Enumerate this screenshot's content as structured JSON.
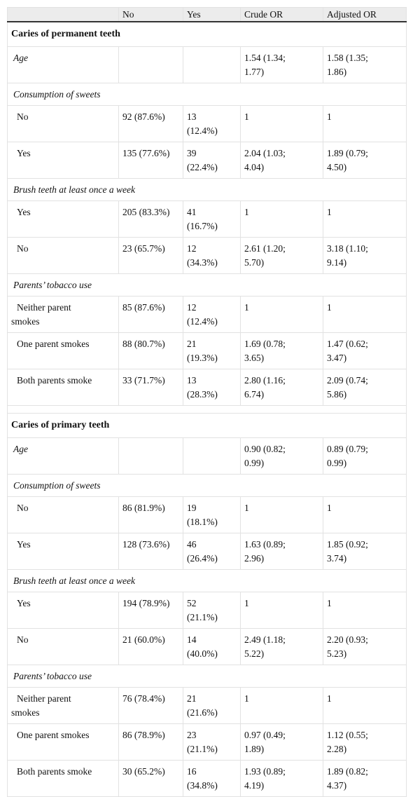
{
  "table": {
    "header": [
      "No",
      "Yes",
      "Crude OR",
      "Adjusted OR"
    ],
    "sections": [
      {
        "title": "Caries of permanent teeth",
        "groups": [
          {
            "label": "Age",
            "crude_or": "1.54 (1.34; 1.77)",
            "adjusted_or": "1.58 (1.35; 1.86)"
          },
          {
            "label": "Consumption of sweets",
            "levels": [
              {
                "label": "No",
                "no": "92 (87.6%)",
                "yes": "13 (12.4%)",
                "crude_or": "1",
                "adjusted_or": "1"
              },
              {
                "label": "Yes",
                "no": "135 (77.6%)",
                "yes": "39 (22.4%)",
                "crude_or": "2.04 (1.03; 4.04)",
                "adjusted_or": "1.89 (0.79; 4.50)"
              }
            ]
          },
          {
            "label": "Brush teeth at least once a week",
            "levels": [
              {
                "label": "Yes",
                "no": "205 (83.3%)",
                "yes": "41 (16.7%)",
                "crude_or": "1",
                "adjusted_or": "1"
              },
              {
                "label": "No",
                "no": "23 (65.7%)",
                "yes": "12 (34.3%)",
                "crude_or": "2.61 (1.20; 5.70)",
                "adjusted_or": "3.18 (1.10; 9.14)"
              }
            ]
          },
          {
            "label": "Parents’ tobacco use",
            "levels": [
              {
                "label": "Neither parent smokes",
                "no": "85 (87.6%)",
                "yes": "12 (12.4%)",
                "crude_or": "1",
                "adjusted_or": "1"
              },
              {
                "label": "One parent smokes",
                "no": "88 (80.7%)",
                "yes": "21 (19.3%)",
                "crude_or": "1.69 (0.78; 3.65)",
                "adjusted_or": "1.47 (0.62; 3.47)"
              },
              {
                "label": "Both parents smoke",
                "no": "33 (71.7%)",
                "yes": "13 (28.3%)",
                "crude_or": "2.80 (1.16; 6.74)",
                "adjusted_or": "2.09 (0.74; 5.86)"
              }
            ]
          }
        ]
      },
      {
        "title": "Caries of primary teeth",
        "groups": [
          {
            "label": "Age",
            "crude_or": "0.90 (0.82; 0.99)",
            "adjusted_or": "0.89 (0.79; 0.99)"
          },
          {
            "label": "Consumption of sweets",
            "levels": [
              {
                "label": "No",
                "no": "86 (81.9%)",
                "yes": "19 (18.1%)",
                "crude_or": "1",
                "adjusted_or": "1"
              },
              {
                "label": "Yes",
                "no": "128 (73.6%)",
                "yes": "46 (26.4%)",
                "crude_or": "1.63 (0.89; 2.96)",
                "adjusted_or": "1.85 (0.92; 3.74)"
              }
            ]
          },
          {
            "label": "Brush teeth at least once a week",
            "levels": [
              {
                "label": "Yes",
                "no": "194 (78.9%)",
                "yes": "52 (21.1%)",
                "crude_or": "1",
                "adjusted_or": "1"
              },
              {
                "label": "No",
                "no": "21 (60.0%)",
                "yes": "14 (40.0%)",
                "crude_or": "2.49 (1.18; 5.22)",
                "adjusted_or": "2.20 (0.93; 5.23)"
              }
            ]
          },
          {
            "label": "Parents’ tobacco use",
            "levels": [
              {
                "label": "Neither parent smokes",
                "no": "76 (78.4%)",
                "yes": "21 (21.6%)",
                "crude_or": "1",
                "adjusted_or": "1"
              },
              {
                "label": "One parent smokes",
                "no": "86 (78.9%)",
                "yes": "23 (21.1%)",
                "crude_or": "0.97 (0.49; 1.89)",
                "adjusted_or": "1.12 (0.55; 2.28)"
              },
              {
                "label": "Both parents smoke",
                "no": "30 (65.2%)",
                "yes": "16 (34.8%)",
                "crude_or": "1.93 (0.89; 4.19)",
                "adjusted_or": "1.89 (0.82; 4.37)"
              }
            ]
          }
        ]
      }
    ]
  }
}
